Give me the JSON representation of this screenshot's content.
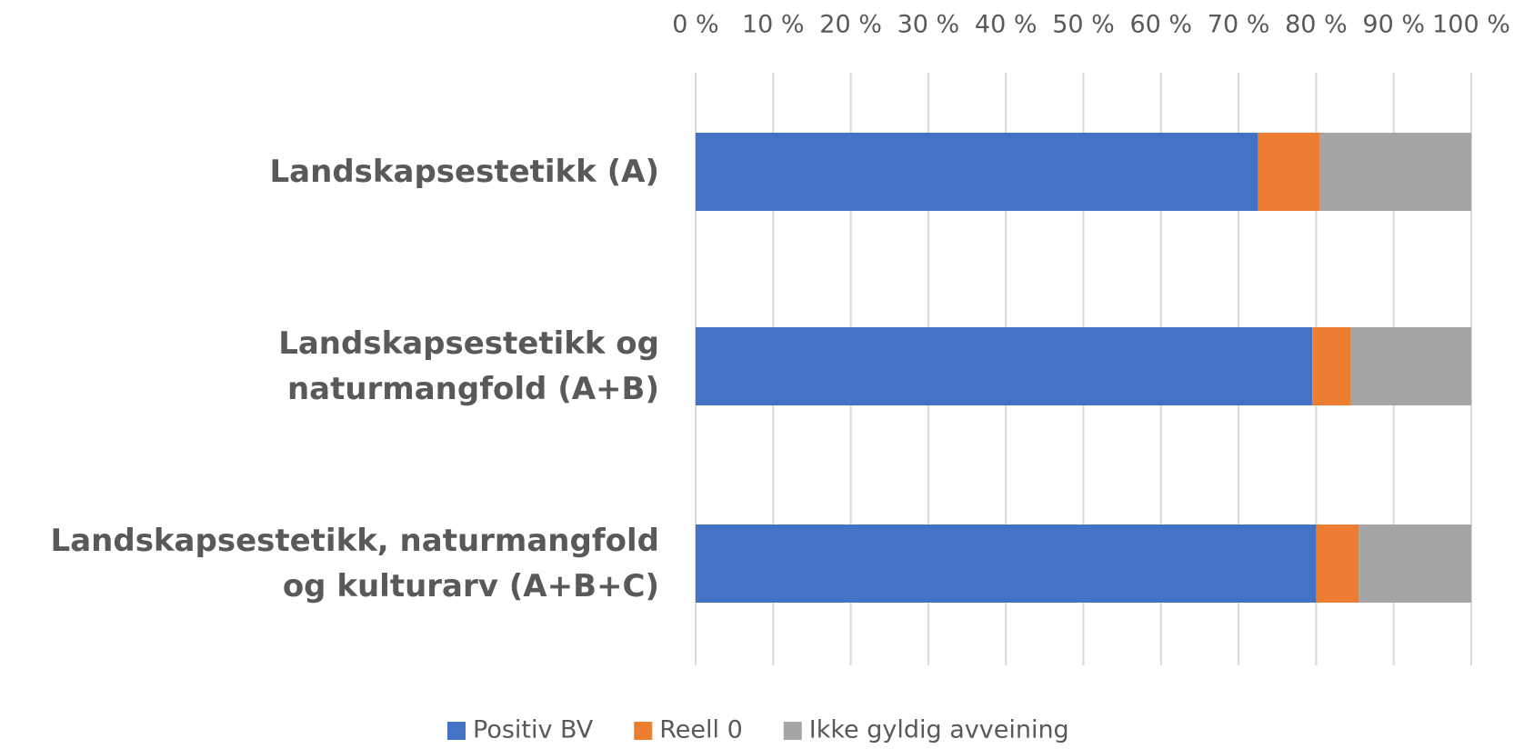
{
  "chart_data": {
    "type": "stacked_barh",
    "categories": [
      "Landskapsestetikk (A)",
      "Landskapsestetikk og naturmangfold (A+B)",
      "Landskapsestetikk, naturmangfold og kulturarv (A+B+C)"
    ],
    "series": [
      {
        "name": "Positiv BV",
        "color": "#4472c4",
        "values": [
          72.5,
          79.5,
          80
        ]
      },
      {
        "name": "Reell 0",
        "color": "#ed7d31",
        "values": [
          8,
          5,
          5.5
        ]
      },
      {
        "name": "Ikke gyldig avveining",
        "color": "#a5a5a5",
        "values": [
          19.5,
          15.5,
          14.5
        ]
      }
    ],
    "xlim": [
      0,
      100
    ],
    "xticks": [
      {
        "value": 0,
        "label": "0 %"
      },
      {
        "value": 10,
        "label": "10 %"
      },
      {
        "value": 20,
        "label": "20 %"
      },
      {
        "value": 30,
        "label": "30 %"
      },
      {
        "value": 40,
        "label": "40 %"
      },
      {
        "value": 50,
        "label": "50 %"
      },
      {
        "value": 60,
        "label": "60 %"
      },
      {
        "value": 70,
        "label": "70 %"
      },
      {
        "value": 80,
        "label": "80 %"
      },
      {
        "value": 90,
        "label": "90 %"
      },
      {
        "value": 100,
        "label": "100 %"
      }
    ],
    "grid": true,
    "legend": "bottom"
  }
}
